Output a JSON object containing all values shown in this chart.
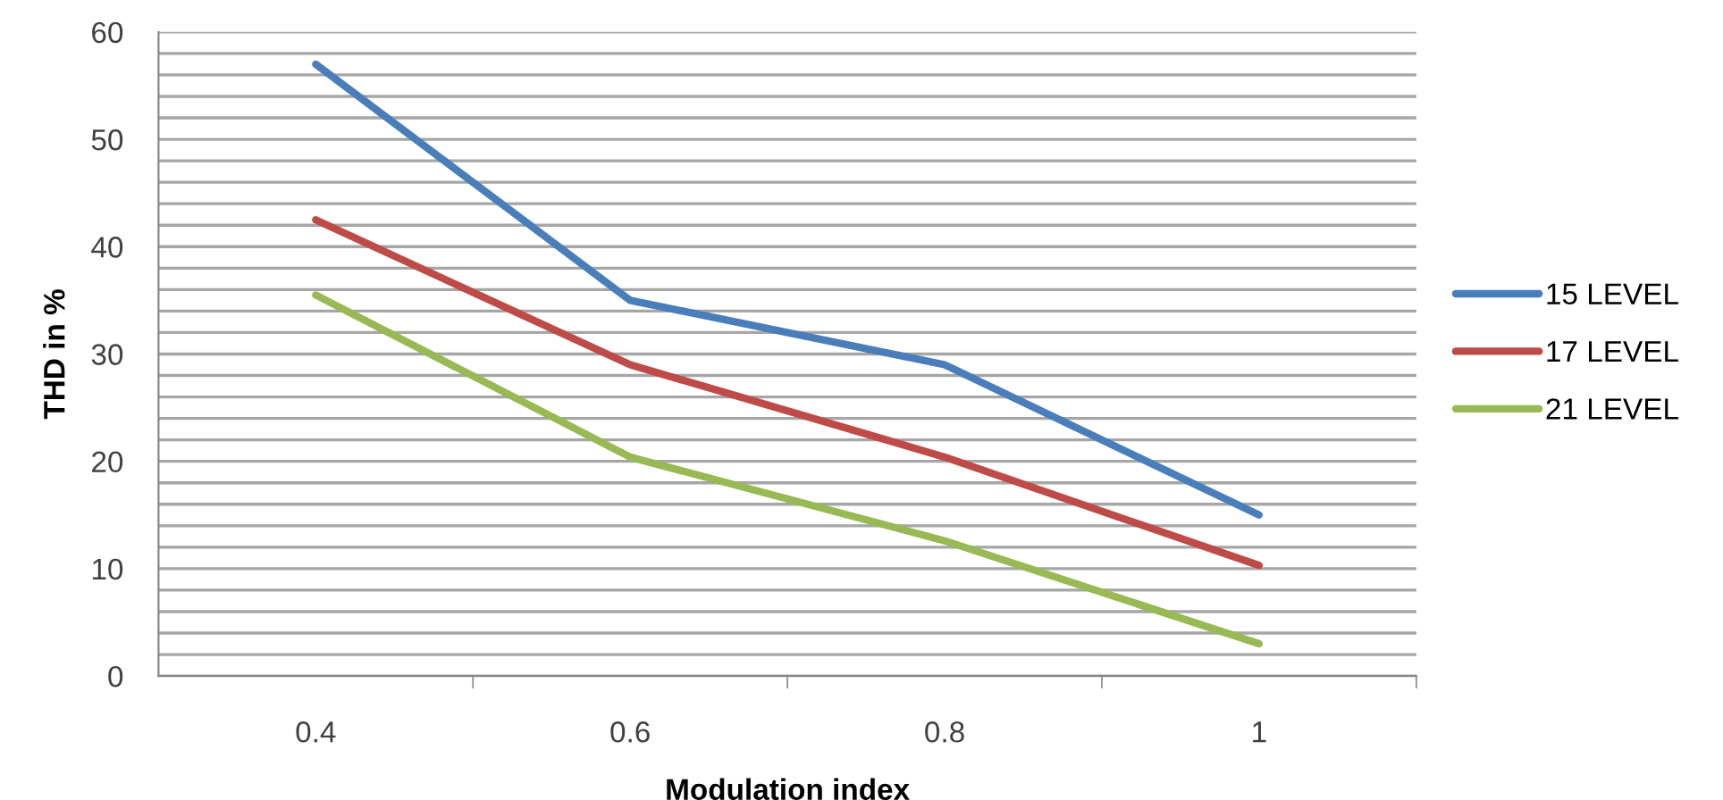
{
  "chart_data": {
    "type": "line",
    "xlabel": "Modulation index",
    "ylabel": "THD in %",
    "categories": [
      "0.4",
      "0.6",
      "0.8",
      "1"
    ],
    "series": [
      {
        "name": "15 LEVEL",
        "color": "#4a7ebb",
        "values": [
          57,
          35,
          29,
          15
        ]
      },
      {
        "name": "17 LEVEL",
        "color": "#be4b48",
        "values": [
          42.5,
          29,
          20.4,
          10.3
        ]
      },
      {
        "name": "21 LEVEL",
        "color": "#98b954",
        "values": [
          35.5,
          20.4,
          12.6,
          3
        ]
      }
    ],
    "ylim": [
      0,
      60
    ],
    "yticks": [
      0,
      {
        "value": 2,
        "label": null
      },
      {
        "value": 4,
        "label": null
      },
      {
        "value": 6,
        "label": null
      },
      {
        "value": 8,
        "label": null
      },
      10,
      {
        "value": 12,
        "label": null
      },
      {
        "value": 14,
        "label": null
      },
      {
        "value": 16,
        "label": null
      },
      {
        "value": 18,
        "label": null
      },
      20,
      {
        "value": 22,
        "label": null
      },
      {
        "value": 24,
        "label": null
      },
      {
        "value": 26,
        "label": null
      },
      {
        "value": 28,
        "label": null
      },
      30,
      {
        "value": 32,
        "label": null
      },
      {
        "value": 34,
        "label": null
      },
      {
        "value": 36,
        "label": null
      },
      {
        "value": 38,
        "label": null
      },
      40,
      {
        "value": 42,
        "label": null
      },
      {
        "value": 44,
        "label": null
      },
      {
        "value": 46,
        "label": null
      },
      {
        "value": 48,
        "label": null
      },
      50,
      {
        "value": 52,
        "label": null
      },
      {
        "value": 54,
        "label": null
      },
      {
        "value": 56,
        "label": null
      },
      {
        "value": 58,
        "label": null
      },
      60
    ],
    "grid": "y",
    "legend": "right",
    "marker": "none",
    "line_style": "solid"
  }
}
